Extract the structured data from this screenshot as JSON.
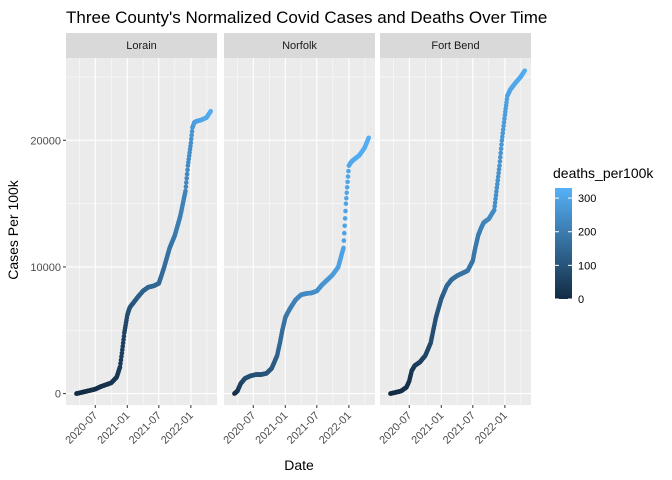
{
  "chart_data": {
    "type": "scatter",
    "title": "Three County's Normalized Covid Cases and Deaths Over Time",
    "xlabel": "Date",
    "ylabel": "Cases Per 100k",
    "x_ticks": [
      "2020-07",
      "2021-01",
      "2021-07",
      "2022-01"
    ],
    "x_tick_dates": [
      "2020-07-01",
      "2021-01-01",
      "2021-07-01",
      "2022-01-01"
    ],
    "xlim": [
      "2020-01-15",
      "2022-05-31"
    ],
    "y_ticks": [
      0,
      10000,
      20000
    ],
    "y_tick_labels": [
      "0",
      "10000",
      "20000"
    ],
    "ylim": [
      -900,
      26500
    ],
    "grid": true,
    "legend": {
      "title": "deaths_per100k",
      "placement": "right",
      "ticks": [
        0,
        100,
        200,
        300
      ],
      "range": [
        0,
        330
      ],
      "color_low": "#132B43",
      "color_high": "#56B1F7"
    },
    "panels": [
      {
        "name": "Lorain",
        "series": {
          "dates": [
            "2020-03-15",
            "2020-04-01",
            "2020-05-01",
            "2020-06-01",
            "2020-07-01",
            "2020-08-01",
            "2020-09-01",
            "2020-10-01",
            "2020-11-01",
            "2020-11-20",
            "2020-12-01",
            "2020-12-15",
            "2021-01-01",
            "2021-01-15",
            "2021-02-01",
            "2021-03-01",
            "2021-04-01",
            "2021-05-01",
            "2021-06-01",
            "2021-07-01",
            "2021-08-01",
            "2021-09-01",
            "2021-10-01",
            "2021-11-01",
            "2021-12-01",
            "2021-12-15",
            "2022-01-01",
            "2022-01-10",
            "2022-01-20",
            "2022-02-01",
            "2022-03-01",
            "2022-04-01",
            "2022-04-25"
          ],
          "cases": [
            0,
            50,
            150,
            250,
            350,
            550,
            700,
            850,
            1300,
            2100,
            3200,
            4800,
            6200,
            6800,
            7100,
            7600,
            8100,
            8400,
            8500,
            8700,
            10000,
            11500,
            12500,
            14000,
            16000,
            18000,
            19800,
            21000,
            21400,
            21500,
            21600,
            21800,
            22300
          ],
          "deaths": [
            0,
            2,
            5,
            8,
            10,
            14,
            18,
            22,
            28,
            35,
            45,
            60,
            80,
            95,
            105,
            120,
            135,
            145,
            150,
            152,
            160,
            175,
            190,
            205,
            220,
            235,
            250,
            265,
            280,
            290,
            300,
            310,
            320
          ]
        }
      },
      {
        "name": "Norfolk",
        "series": {
          "dates": [
            "2020-03-15",
            "2020-04-01",
            "2020-04-20",
            "2020-05-15",
            "2020-06-15",
            "2020-07-15",
            "2020-08-15",
            "2020-09-15",
            "2020-10-15",
            "2020-11-15",
            "2020-12-01",
            "2020-12-15",
            "2021-01-01",
            "2021-01-15",
            "2021-02-01",
            "2021-03-01",
            "2021-04-01",
            "2021-05-01",
            "2021-06-01",
            "2021-07-01",
            "2021-08-01",
            "2021-09-01",
            "2021-10-01",
            "2021-11-01",
            "2021-12-01",
            "2021-12-15",
            "2022-01-01",
            "2022-01-15",
            "2022-02-01",
            "2022-03-01",
            "2022-04-01",
            "2022-04-25"
          ],
          "cases": [
            0,
            200,
            800,
            1200,
            1400,
            1500,
            1500,
            1600,
            2000,
            3000,
            4000,
            5000,
            6000,
            6400,
            6800,
            7400,
            7800,
            7900,
            7950,
            8100,
            8600,
            9000,
            9400,
            10000,
            11500,
            15000,
            18000,
            18300,
            18500,
            18800,
            19400,
            20200
          ],
          "deaths": [
            0,
            20,
            55,
            80,
            90,
            95,
            98,
            102,
            110,
            130,
            150,
            165,
            180,
            190,
            200,
            215,
            228,
            235,
            240,
            245,
            255,
            265,
            275,
            285,
            295,
            300,
            305,
            308,
            310,
            315,
            320,
            325
          ]
        }
      },
      {
        "name": "Fort Bend",
        "series": {
          "dates": [
            "2020-03-15",
            "2020-04-15",
            "2020-05-15",
            "2020-06-15",
            "2020-07-01",
            "2020-07-15",
            "2020-08-01",
            "2020-09-01",
            "2020-10-01",
            "2020-11-01",
            "2020-12-01",
            "2021-01-01",
            "2021-02-01",
            "2021-03-01",
            "2021-04-01",
            "2021-05-01",
            "2021-06-01",
            "2021-07-01",
            "2021-07-15",
            "2021-08-01",
            "2021-08-15",
            "2021-09-01",
            "2021-10-01",
            "2021-11-01",
            "2021-12-01",
            "2021-12-15",
            "2022-01-01",
            "2022-01-15",
            "2022-02-01",
            "2022-03-01",
            "2022-04-01",
            "2022-04-25"
          ],
          "cases": [
            0,
            100,
            200,
            500,
            1000,
            1800,
            2200,
            2500,
            3000,
            4000,
            6000,
            7500,
            8500,
            9000,
            9300,
            9500,
            9700,
            10500,
            11500,
            12500,
            13000,
            13500,
            13800,
            14500,
            18000,
            20000,
            22000,
            23500,
            24000,
            24500,
            25000,
            25500
          ],
          "deaths": [
            0,
            5,
            8,
            12,
            18,
            25,
            35,
            50,
            62,
            75,
            95,
            120,
            145,
            160,
            170,
            178,
            182,
            185,
            188,
            195,
            205,
            215,
            228,
            240,
            255,
            268,
            280,
            290,
            298,
            305,
            310,
            315
          ]
        }
      }
    ]
  }
}
